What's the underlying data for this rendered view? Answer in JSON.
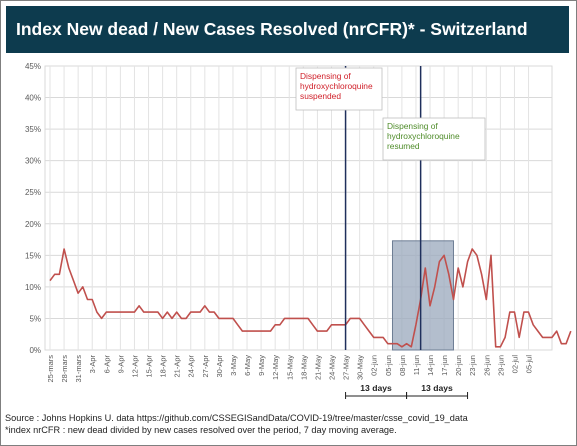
{
  "chart_data": {
    "type": "line",
    "title": "Index New dead / New Cases Resolved (nrCFR)* - Switzerland",
    "y_ticks": [
      "0%",
      "5%",
      "10%",
      "15%",
      "20%",
      "25%",
      "30%",
      "35%",
      "40%",
      "45%"
    ],
    "ylim": [
      0,
      45
    ],
    "x_tick_labels": [
      "25-mars",
      "28-mars",
      "31-mars",
      "3-Apr",
      "6-Apr",
      "9-Apr",
      "12-Apr",
      "15-Apr",
      "18-Apr",
      "21-Apr",
      "24-Apr",
      "27-Apr",
      "30-Apr",
      "3-May",
      "6-May",
      "9-May",
      "12-May",
      "15-May",
      "18-May",
      "21-May",
      "24-May",
      "27-May",
      "30-May",
      "02-jun",
      "05-jun",
      "08-jun",
      "11-jun",
      "14-jun",
      "17-jun",
      "20-jun",
      "23-jun",
      "26-jun",
      "29-jun",
      "02-jul",
      "05-jul"
    ],
    "x_start_date": "2020-03-25",
    "day_step": 3,
    "grid": true,
    "series": [
      {
        "color": "#c0504d",
        "values": [
          11,
          12,
          12,
          16,
          13,
          11,
          9,
          10,
          8,
          8,
          6,
          5,
          6,
          6,
          6,
          6,
          6,
          6,
          6,
          7,
          6,
          6,
          6,
          6,
          5,
          6,
          5,
          6,
          5,
          5,
          6,
          6,
          6,
          7,
          6,
          6,
          5,
          5,
          5,
          5,
          4,
          3,
          3,
          3,
          3,
          3,
          3,
          3,
          4,
          4,
          5,
          5,
          5,
          5,
          5,
          5,
          4,
          3,
          3,
          3,
          4,
          4,
          4,
          4,
          5,
          5,
          5,
          4,
          3,
          2,
          2,
          2,
          1,
          1,
          1,
          0.5,
          1,
          0.5,
          4,
          8,
          13,
          7,
          10,
          14,
          15,
          12,
          8,
          13,
          10,
          14,
          16,
          15,
          12,
          8,
          15,
          0.5,
          0.5,
          2,
          6,
          6,
          2,
          6,
          6,
          4,
          3,
          2,
          2,
          2,
          3,
          1,
          1,
          3
        ]
      }
    ],
    "annotations": [
      {
        "date_index": 63,
        "color": "#d0202a",
        "text": [
          "Dispensing of",
          "hydroxychloroquine",
          "suspended"
        ]
      },
      {
        "date_index": 79,
        "color": "#4f8c2a",
        "text": [
          "Dispensing of",
          "hydroxychloroquine",
          "resumed"
        ]
      }
    ],
    "shaded_range": {
      "start_index": 73,
      "end_index": 86
    },
    "brackets": [
      {
        "start_index": 63,
        "end_index": 76,
        "label": "13 days"
      },
      {
        "start_index": 76,
        "end_index": 89,
        "label": "13 days"
      }
    ]
  },
  "source_line": "Source : Johns Hopkins U. data https://github.com/CSSEGISandData/COVID-19/tree/master/csse_covid_19_data",
  "footnote_line": "*index nrCFR : new dead divided by new cases resolved over the period, 7 day moving average."
}
